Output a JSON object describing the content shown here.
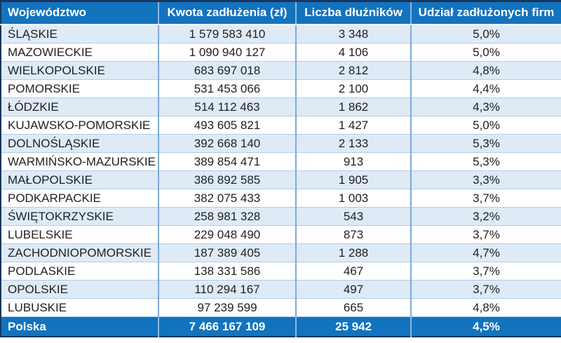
{
  "colors": {
    "header_bg": "#1273BF",
    "total_row_bg": "#1273BF",
    "alt_row_bg": "#DEEBF7",
    "plain_row_bg": "#FFFFFF",
    "outer_border": "#17375E",
    "column_divider": "#7FA9D4",
    "row_divider": "#AECDEA",
    "header_text": "#FFFFFF",
    "body_text": "#1F1F1F"
  },
  "table": {
    "columns": [
      "Województwo",
      "Kwota zadłużenia (zł)",
      "Liczba dłużników",
      "Udział zadłużonych firm"
    ],
    "rows": [
      {
        "name": "ŚLĄSKIE",
        "amount": "1 579 583 410",
        "debtors": "3 348",
        "share": "5,0%"
      },
      {
        "name": "MAZOWIECKIE",
        "amount": "1 090 940 127",
        "debtors": "4 106",
        "share": "5,0%"
      },
      {
        "name": "WIELKOPOLSKIE",
        "amount": "683 697 018",
        "debtors": "2 812",
        "share": "4,8%"
      },
      {
        "name": "POMORSKIE",
        "amount": "531 453 066",
        "debtors": "2 100",
        "share": "4,4%"
      },
      {
        "name": "ŁÓDZKIE",
        "amount": "514 112 463",
        "debtors": "1 862",
        "share": "4,3%"
      },
      {
        "name": "KUJAWSKO-POMORSKIE",
        "amount": "493 605 821",
        "debtors": "1 427",
        "share": "5,0%"
      },
      {
        "name": "DOLNOŚLĄSKIE",
        "amount": "392 668 140",
        "debtors": "2 133",
        "share": "5,3%"
      },
      {
        "name": "WARMIŃSKO-MAZURSKIE",
        "amount": "389 854 471",
        "debtors": "913",
        "share": "5,3%"
      },
      {
        "name": "MAŁOPOLSKIE",
        "amount": "386 892 585",
        "debtors": "1 905",
        "share": "3,3%"
      },
      {
        "name": "PODKARPACKIE",
        "amount": "382 075 433",
        "debtors": "1 003",
        "share": "3,7%"
      },
      {
        "name": "ŚWIĘTOKRZYSKIE",
        "amount": "258 981 328",
        "debtors": "543",
        "share": "3,2%"
      },
      {
        "name": "LUBELSKIE",
        "amount": "229 048 490",
        "debtors": "873",
        "share": "3,7%"
      },
      {
        "name": "ZACHODNIOPOMORSKIE",
        "amount": "187 389 405",
        "debtors": "1 288",
        "share": "4,7%"
      },
      {
        "name": "PODLASKIE",
        "amount": "138 331 586",
        "debtors": "467",
        "share": "3,7%"
      },
      {
        "name": "OPOLSKIE",
        "amount": "110 294 167",
        "debtors": "497",
        "share": "3,7%"
      },
      {
        "name": "LUBUSKIE",
        "amount": "97 239 599",
        "debtors": "665",
        "share": "4,8%"
      }
    ],
    "total": {
      "name": "Polska",
      "amount": "7 466 167 109",
      "debtors": "25 942",
      "share": "4,5%"
    }
  },
  "chart_data": {
    "type": "table",
    "title": "",
    "columns": [
      "Województwo",
      "Kwota zadłużenia (zł)",
      "Liczba dłużników",
      "Udział zadłużonych firm"
    ],
    "rows": [
      [
        "ŚLĄSKIE",
        1579583410,
        3348,
        "5,0%"
      ],
      [
        "MAZOWIECKIE",
        1090940127,
        4106,
        "5,0%"
      ],
      [
        "WIELKOPOLSKIE",
        683697018,
        2812,
        "4,8%"
      ],
      [
        "POMORSKIE",
        531453066,
        2100,
        "4,4%"
      ],
      [
        "ŁÓDZKIE",
        514112463,
        1862,
        "4,3%"
      ],
      [
        "KUJAWSKO-POMORSKIE",
        493605821,
        1427,
        "5,0%"
      ],
      [
        "DOLNOŚLĄSKIE",
        392668140,
        2133,
        "5,3%"
      ],
      [
        "WARMIŃSKO-MAZURSKIE",
        389854471,
        913,
        "5,3%"
      ],
      [
        "MAŁOPOLSKIE",
        386892585,
        1905,
        "3,3%"
      ],
      [
        "PODKARPACKIE",
        382075433,
        1003,
        "3,7%"
      ],
      [
        "ŚWIĘTOKRZYSKIE",
        258981328,
        543,
        "3,2%"
      ],
      [
        "LUBELSKIE",
        229048490,
        873,
        "3,7%"
      ],
      [
        "ZACHODNIOPOMORSKIE",
        187389405,
        1288,
        "4,7%"
      ],
      [
        "PODLASKIE",
        138331586,
        467,
        "3,7%"
      ],
      [
        "OPOLSKIE",
        110294167,
        497,
        "3,7%"
      ],
      [
        "LUBUSKIE",
        97239599,
        665,
        "4,8%"
      ]
    ],
    "total_row": [
      "Polska",
      7466167109,
      25942,
      "4,5%"
    ]
  }
}
